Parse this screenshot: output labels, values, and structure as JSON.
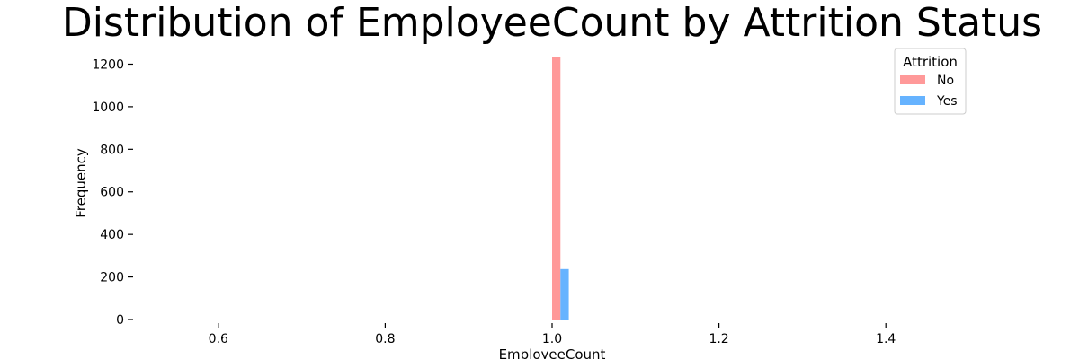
{
  "chart_data": {
    "type": "bar",
    "title": "Distribution of EmployeeCount by Attrition Status",
    "xlabel": "EmployeeCount",
    "ylabel": "Frequency",
    "xlim": [
      0.5,
      1.5
    ],
    "ylim": [
      0,
      1240
    ],
    "x_ticks": [
      0.6,
      0.8,
      1.0,
      1.2,
      1.4
    ],
    "x_tick_labels": [
      "0.6",
      "0.8",
      "1.0",
      "1.2",
      "1.4"
    ],
    "y_ticks": [
      0,
      200,
      400,
      600,
      800,
      1000,
      1200
    ],
    "y_tick_labels": [
      "0",
      "200",
      "400",
      "600",
      "800",
      "1000",
      "1200"
    ],
    "grid": false,
    "legend": {
      "title": "Attrition",
      "placement": "top-right"
    },
    "series": [
      {
        "name": "No",
        "color": "#ff9999",
        "bins": [
          {
            "x0": 1.0,
            "x1": 1.01,
            "count": 1233
          }
        ]
      },
      {
        "name": "Yes",
        "color": "#66b3ff",
        "bins": [
          {
            "x0": 1.01,
            "x1": 1.02,
            "count": 237
          }
        ]
      }
    ]
  }
}
